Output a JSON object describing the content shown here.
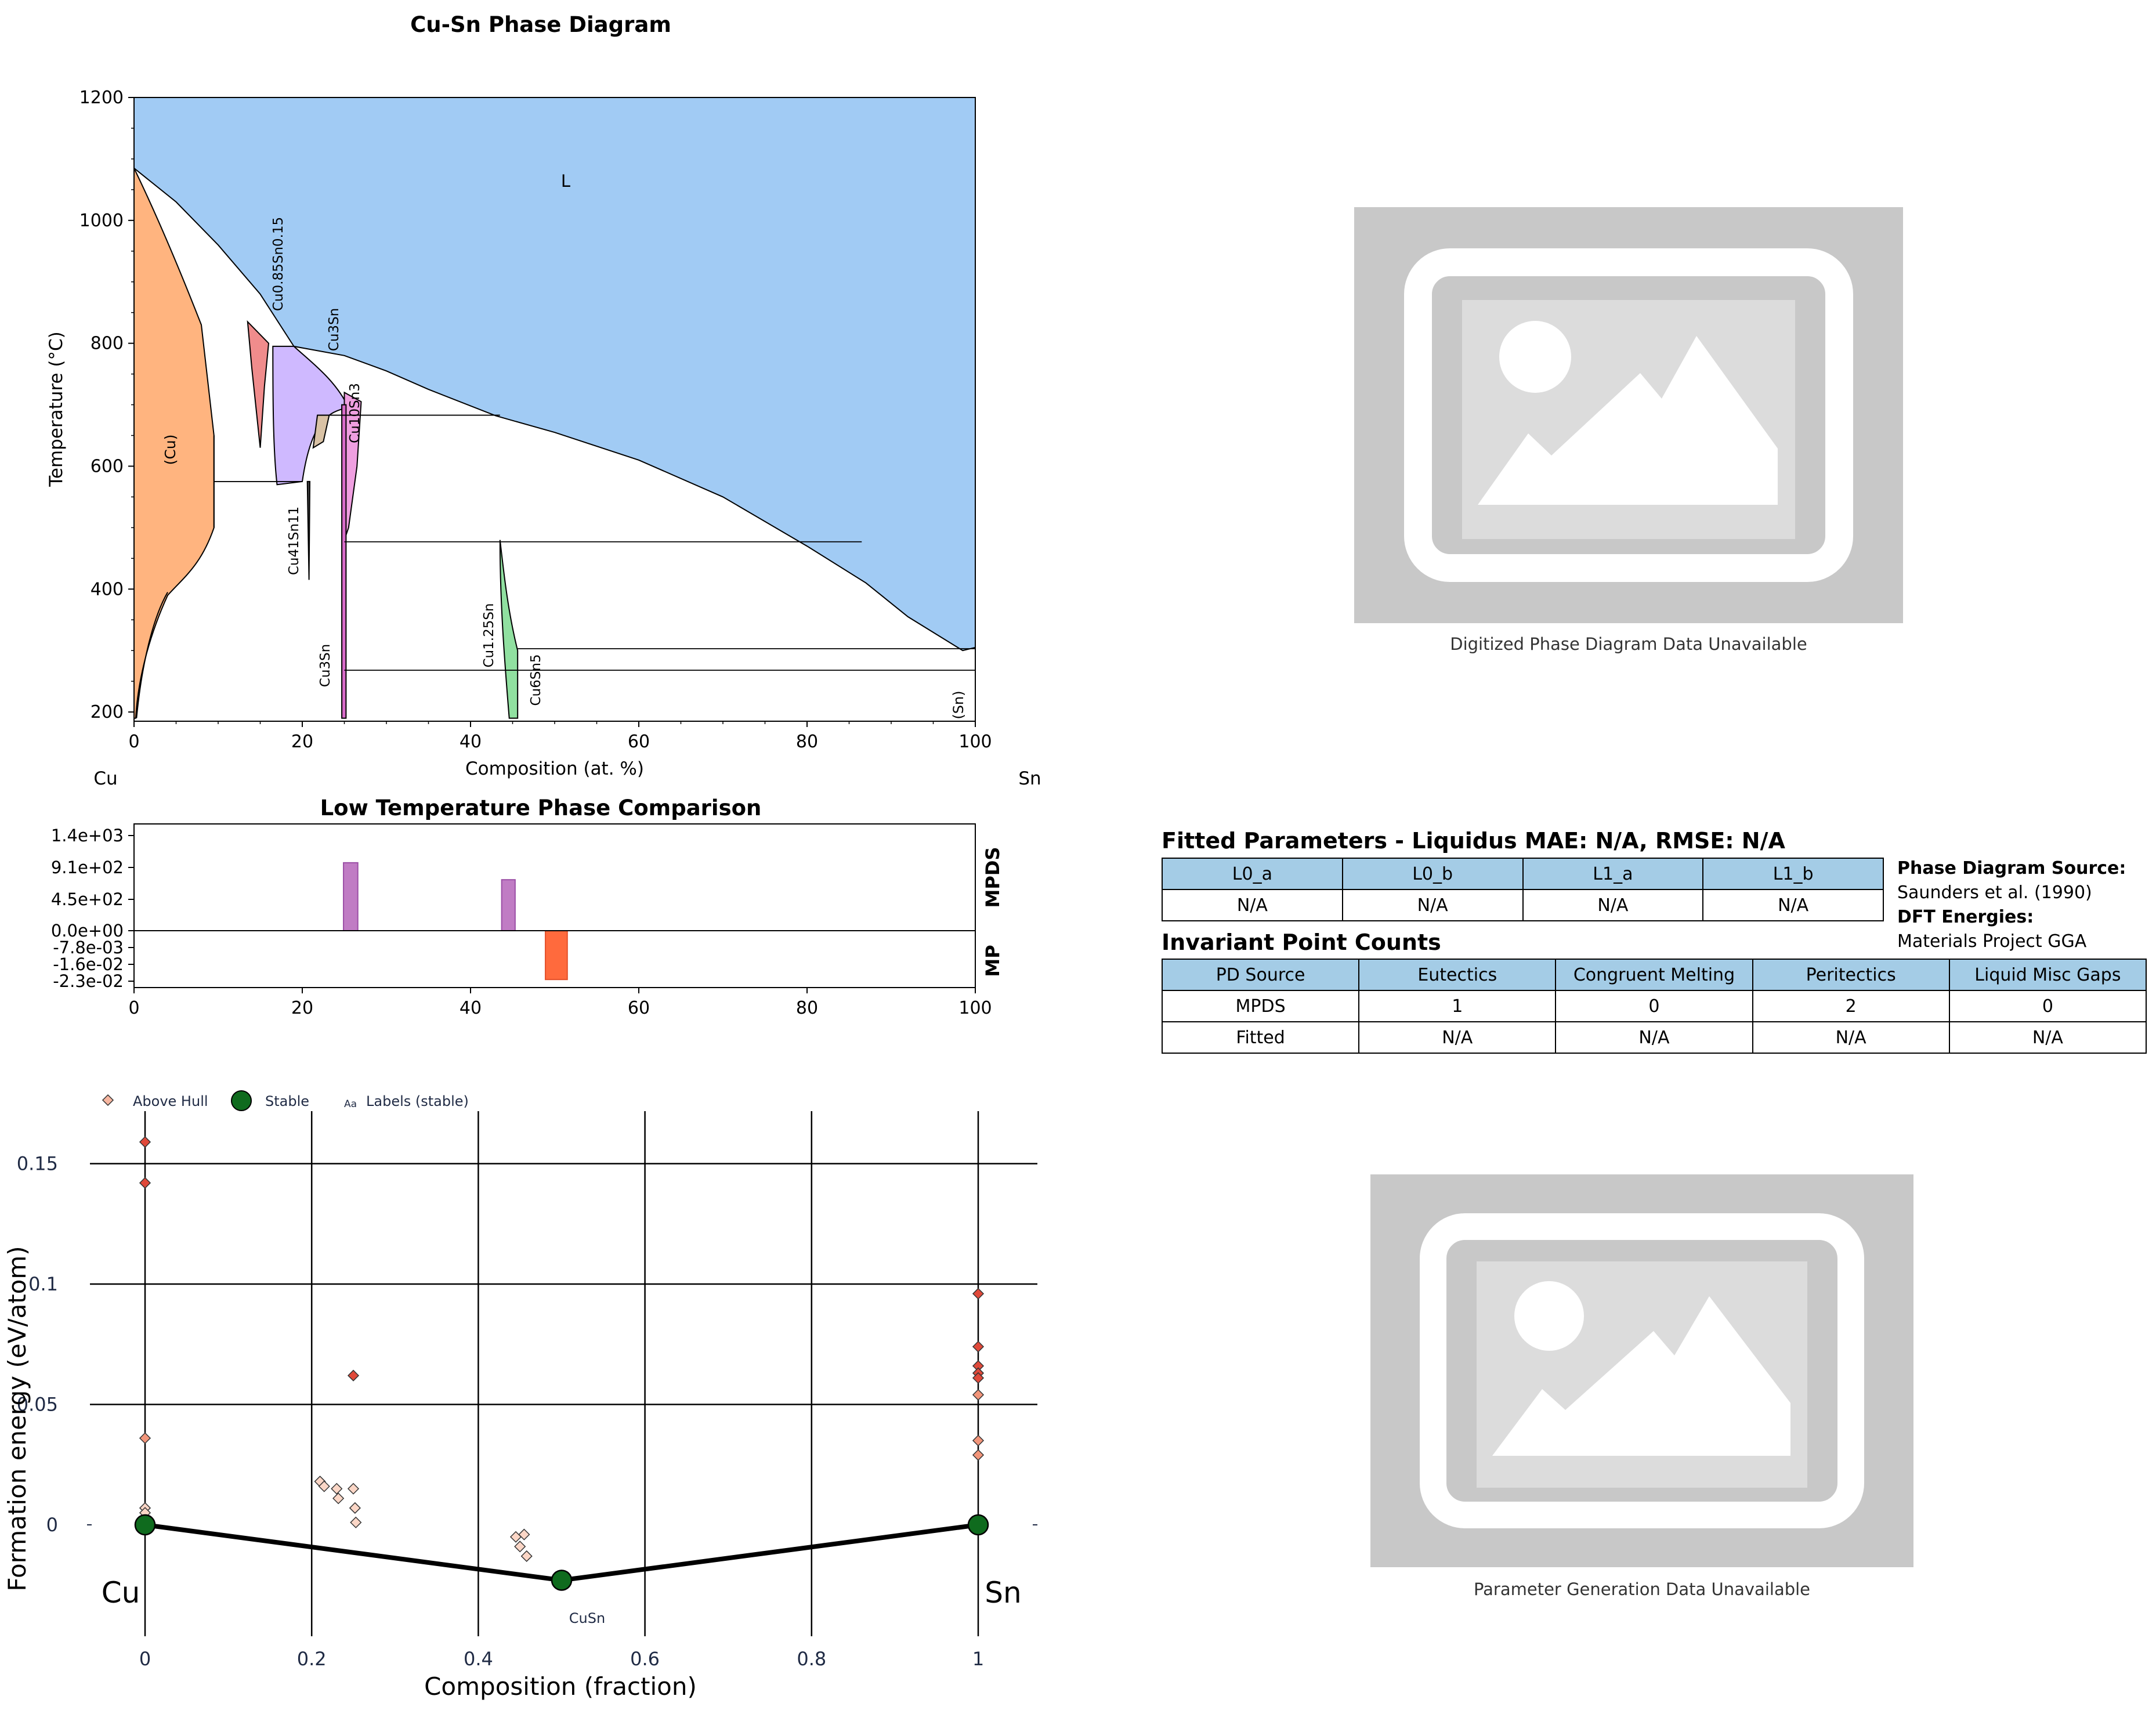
{
  "phase_diagram": {
    "title": "Cu-Sn Phase Diagram",
    "xlabel": "Composition (at. %)",
    "ylabel": "Temperature (°C)",
    "left_element": "Cu",
    "right_element": "Sn",
    "xticks": [
      "0",
      "20",
      "40",
      "60",
      "80",
      "100"
    ],
    "yticks": [
      "200",
      "400",
      "600",
      "800",
      "1000",
      "1200"
    ],
    "phase_labels": {
      "liquid": "L",
      "cu_solid": "(Cu)",
      "sn_solid": "(Sn)",
      "cu085": "Cu0.85Sn0.15",
      "cu3sn_top": "Cu3Sn",
      "cu10sn3": "Cu10Sn3",
      "cu41sn11": "Cu41Sn11",
      "cu3sn_bottom": "Cu3Sn",
      "cu125sn": "Cu1.25Sn",
      "cu6sn5": "Cu6Sn5"
    },
    "colors": {
      "liquid": "#a1cbf4",
      "cu_solid": "#ffb47f",
      "cu085": "#f08c8c",
      "cu3sn_top": "#cfb9ff",
      "small_tan": "#d9c2a5",
      "cu10sn3": "#ef9fe0",
      "cu125sn": "#90e0a0",
      "cu3sn_bottom": "#d76bc9"
    }
  },
  "comparison": {
    "title": "Low Temperature Phase Comparison",
    "xticks": [
      "0",
      "20",
      "40",
      "60",
      "80",
      "100"
    ],
    "yticks": [
      "1.4e+03",
      "9.1e+02",
      "4.5e+02",
      "0.0e+00",
      "-7.8e-03",
      "-1.6e-02",
      "-2.3e-02"
    ],
    "label_top": "MPDS",
    "label_bottom": "MP"
  },
  "hull": {
    "xlabel": "Composition (fraction)",
    "ylabel": "Formation energy (eV/atom)",
    "xticks": [
      "0",
      "0.2",
      "0.4",
      "0.6",
      "0.8",
      "1"
    ],
    "yticks": [
      "0",
      "0.05",
      "0.1",
      "0.15"
    ],
    "legend": {
      "above": "Above Hull",
      "stable": "Stable",
      "labels_marker": "Aa",
      "labels": "Labels (stable)"
    },
    "end_left": "Cu",
    "end_right": "Sn",
    "stable_label": "CuSn"
  },
  "placeholder_top": {
    "caption": "Digitized Phase Diagram Data Unavailable"
  },
  "placeholder_bottom": {
    "caption": "Parameter Generation Data Unavailable"
  },
  "fitted": {
    "title": "Fitted Parameters - Liquidus MAE: N/A, RMSE: N/A",
    "headers": [
      "L0_a",
      "L0_b",
      "L1_a",
      "L1_b"
    ],
    "values": [
      "N/A",
      "N/A",
      "N/A",
      "N/A"
    ]
  },
  "source": {
    "pd_label": "Phase Diagram Source:",
    "pd_value": "Saunders et al. (1990)",
    "dft_label": "DFT Energies:",
    "dft_value": "Materials Project GGA"
  },
  "invariant": {
    "title": "Invariant Point Counts",
    "headers": [
      "PD Source",
      "Eutectics",
      "Congruent Melting",
      "Peritectics",
      "Liquid Misc Gaps"
    ],
    "rows": [
      [
        "MPDS",
        "1",
        "0",
        "2",
        "0"
      ],
      [
        "Fitted",
        "N/A",
        "N/A",
        "N/A",
        "N/A"
      ]
    ]
  },
  "chart_data": [
    {
      "type": "area",
      "title": "Cu-Sn Phase Diagram",
      "xlabel": "Composition (at. %)",
      "ylabel": "Temperature (°C)",
      "xlim": [
        0,
        100
      ],
      "ylim": [
        185,
        1200
      ],
      "grid": false,
      "liquidus_T": [
        [
          0,
          1085
        ],
        [
          5,
          1030
        ],
        [
          10,
          960
        ],
        [
          15,
          880
        ],
        [
          19,
          795
        ],
        [
          25,
          780
        ],
        [
          30,
          755
        ],
        [
          35,
          725
        ],
        [
          43,
          682
        ],
        [
          50,
          655
        ],
        [
          60,
          610
        ],
        [
          70,
          550
        ],
        [
          80,
          470
        ],
        [
          87,
          410
        ],
        [
          92,
          355
        ],
        [
          98.5,
          300
        ],
        [
          100,
          305
        ]
      ],
      "invariant_lines_T": [
        {
          "T": 575,
          "x": [
            9.5,
            20
          ]
        },
        {
          "T": 683,
          "x": [
            21.8,
            43.5
          ]
        },
        {
          "T": 477,
          "x": [
            25,
            86.5
          ]
        },
        {
          "T": 303,
          "x": [
            45.6,
            100
          ]
        },
        {
          "T": 268,
          "x": [
            25,
            100
          ]
        }
      ]
    },
    {
      "type": "bar",
      "title": "Low Temperature Phase Comparison",
      "xlim": [
        0,
        100
      ],
      "series": [
        {
          "name": "MPDS",
          "bars": [
            {
              "x": [
                24.9,
                26.6
              ],
              "value": 1000
            },
            {
              "x": [
                43.7,
                45.3
              ],
              "value": 750
            }
          ]
        },
        {
          "name": "MP",
          "bars": [
            {
              "x": [
                48.9,
                51.5
              ],
              "value": -0.022
            }
          ]
        }
      ]
    },
    {
      "type": "scatter",
      "xlabel": "Composition (fraction)",
      "ylabel": "Formation energy (eV/atom)",
      "xlim": [
        -0.01,
        1.07
      ],
      "ylim": [
        -0.04,
        0.17
      ],
      "legend": "top-left",
      "series": [
        {
          "name": "Above Hull",
          "points": [
            [
              0,
              0.159
            ],
            [
              0,
              0.142
            ],
            [
              0,
              0.036
            ],
            [
              0,
              0.007
            ],
            [
              0,
              0.005
            ],
            [
              0.21,
              0.018
            ],
            [
              0.215,
              0.016
            ],
            [
              0.23,
              0.015
            ],
            [
              0.232,
              0.011
            ],
            [
              0.25,
              0.062
            ],
            [
              0.25,
              0.015
            ],
            [
              0.252,
              0.007
            ],
            [
              0.253,
              0.001
            ],
            [
              0.445,
              -0.005
            ],
            [
              0.45,
              -0.009
            ],
            [
              0.455,
              -0.004
            ],
            [
              0.458,
              -0.013
            ],
            [
              1,
              0.096
            ],
            [
              1,
              0.074
            ],
            [
              1,
              0.066
            ],
            [
              1,
              0.063
            ],
            [
              1,
              0.061
            ],
            [
              1,
              0.054
            ],
            [
              1,
              0.035
            ],
            [
              1,
              0.029
            ]
          ]
        },
        {
          "name": "Stable",
          "points": [
            [
              0,
              0
            ],
            [
              0.5,
              -0.023
            ],
            [
              1,
              0
            ]
          ]
        }
      ]
    }
  ]
}
